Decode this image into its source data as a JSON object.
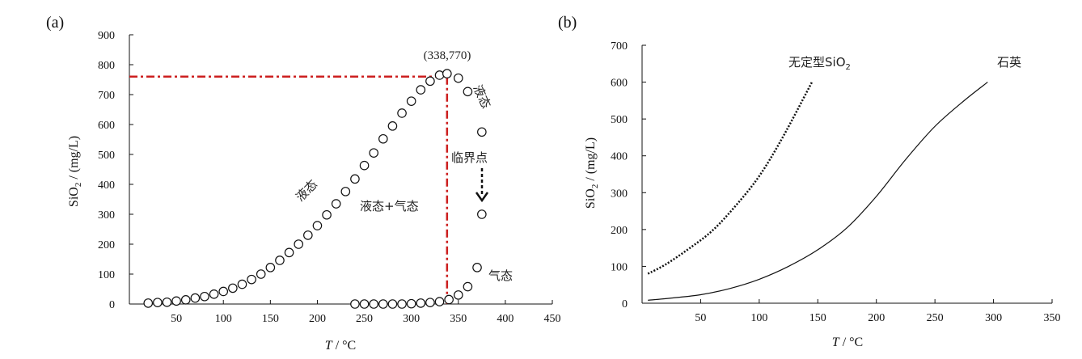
{
  "panels": {
    "a": {
      "label": "(a)",
      "chart_data": {
        "type": "scatter",
        "xlabel": "T / °C",
        "ylabel": "SiO2 / (mg/L)",
        "xlim": [
          0,
          450
        ],
        "ylim": [
          0,
          900
        ],
        "xticks": [
          50,
          100,
          150,
          200,
          250,
          300,
          350,
          400,
          450
        ],
        "yticks": [
          0,
          100,
          200,
          300,
          400,
          500,
          600,
          700,
          800,
          900
        ],
        "series": [
          {
            "x": [
              20,
              30,
              40,
              50,
              60,
              70,
              80,
              90,
              100,
              110,
              120,
              130,
              140,
              150,
              160,
              170,
              180,
              190,
              200,
              210,
              220,
              230,
              240,
              250,
              260,
              270,
              280,
              290,
              300,
              310,
              320,
              330,
              338,
              350,
              360,
              375
            ],
            "y": [
              3,
              5,
              6,
              10,
              14,
              20,
              25,
              33,
              42,
              53,
              66,
              82,
              100,
              122,
              146,
              172,
              200,
              230,
              262,
              298,
              335,
              376,
              418,
              463,
              505,
              552,
              595,
              638,
              678,
              716,
              745,
              765,
              770,
              755,
              710,
              575
            ]
          },
          {
            "x": [
              240,
              250,
              260,
              270,
              280,
              290,
              300,
              310,
              320,
              330,
              340,
              350,
              360,
              370
            ],
            "y": [
              0,
              0,
              0,
              0,
              0,
              0,
              1,
              3,
              5,
              8,
              15,
              30,
              58,
              122
            ]
          },
          {
            "x": [
              375
            ],
            "y": [
              300
            ]
          }
        ],
        "reference": {
          "x": 338,
          "y": 760
        },
        "annotations": {
          "critical_point_label": "(338,770)",
          "liquid_left": "液态",
          "liquid_right": "液态",
          "two_phase": "液态+气态",
          "critical_point": "临界点",
          "vapor": "气态"
        }
      }
    },
    "b": {
      "label": "(b)",
      "chart_data": {
        "type": "line",
        "xlabel": "T / °C",
        "ylabel": "SiO2 / (mg/L)",
        "xlim": [
          0,
          350
        ],
        "ylim": [
          0,
          700
        ],
        "xticks": [
          50,
          100,
          150,
          200,
          250,
          300,
          350
        ],
        "yticks": [
          0,
          100,
          200,
          300,
          400,
          500,
          600,
          700
        ],
        "series": [
          {
            "name": "无定型SiO2",
            "style": "dotted",
            "x": [
              5,
              20,
              40,
              60,
              80,
              100,
              120,
              145
            ],
            "y": [
              80,
              105,
              148,
              197,
              265,
              345,
              450,
              600
            ]
          },
          {
            "name": "石英",
            "style": "solid",
            "x": [
              5,
              25,
              50,
              75,
              100,
              125,
              150,
              175,
              200,
              225,
              250,
              275,
              295
            ],
            "y": [
              8,
              14,
              23,
              40,
              65,
              100,
              145,
              205,
              290,
              390,
              480,
              550,
              600
            ]
          }
        ]
      }
    }
  }
}
